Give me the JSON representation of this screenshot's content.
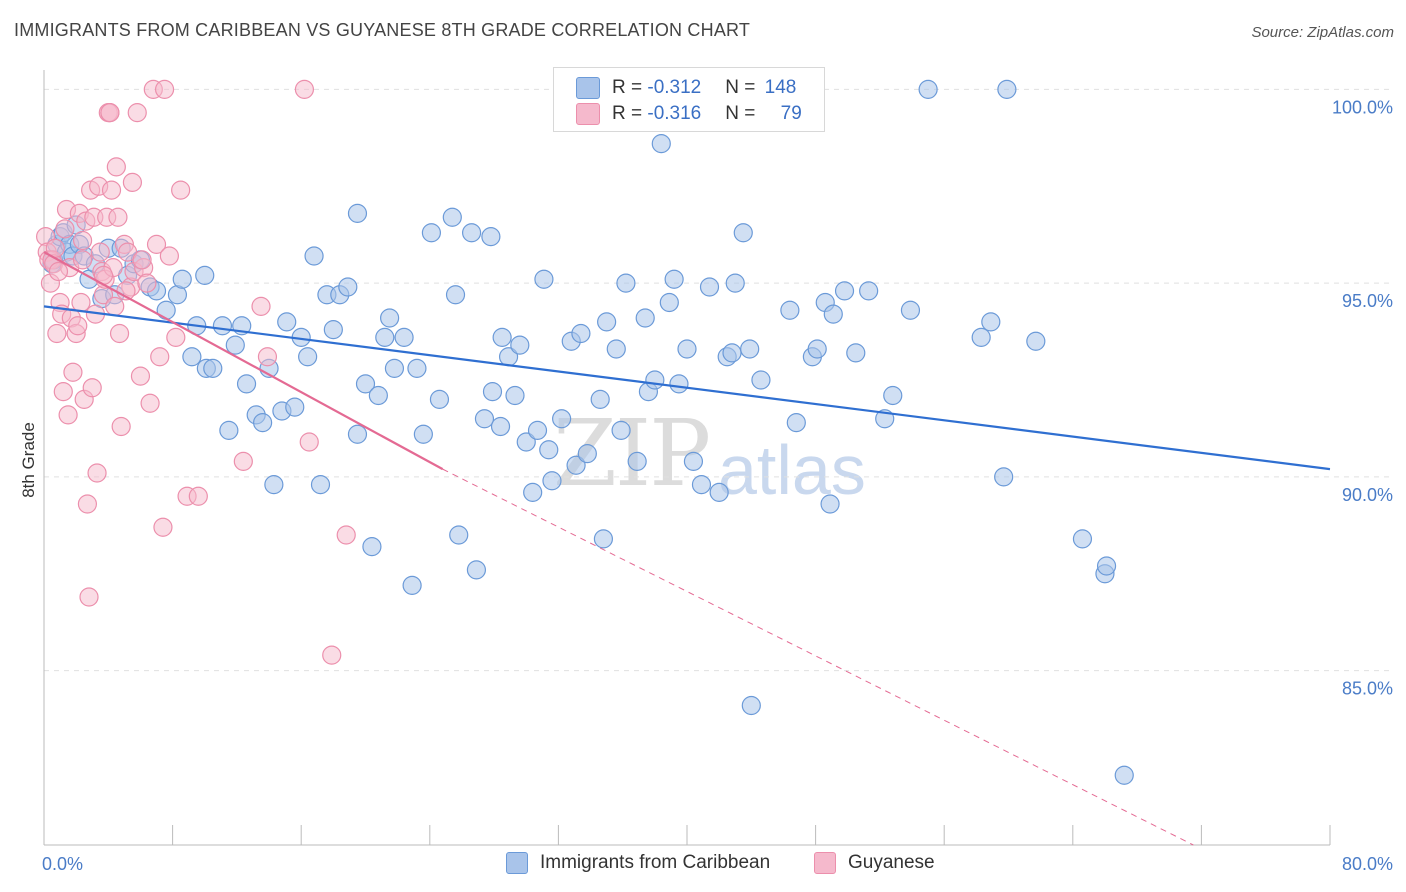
{
  "title": "IMMIGRANTS FROM CARIBBEAN VS GUYANESE 8TH GRADE CORRELATION CHART",
  "source": "Source: ZipAtlas.com",
  "watermark": {
    "zip": "ZIP",
    "atlas": "atlas"
  },
  "legend": {
    "series1": {
      "r_label": "R = ",
      "r_value": "-0.312",
      "n_label": "N = ",
      "n_value": "148"
    },
    "series2": {
      "r_label": "R = ",
      "r_value": "-0.316",
      "n_label": "N = ",
      "n_value": "79"
    }
  },
  "bottom_legend": {
    "series1": "Immigrants from Caribbean",
    "series2": "Guyanese"
  },
  "colors": {
    "blue_fill": "#a9c4ea",
    "blue_stroke": "#6b9ad8",
    "blue_line": "#2f6fd1",
    "pink_fill": "#f5b9cc",
    "pink_stroke": "#ec8fac",
    "pink_line": "#e46a93",
    "grid": "#e0e0e0"
  },
  "chart_data": {
    "type": "scatter",
    "title": "IMMIGRANTS FROM CARIBBEAN VS GUYANESE 8TH GRADE CORRELATION CHART",
    "xlabel": "",
    "ylabel": "8th Grade",
    "xlim": [
      0,
      80
    ],
    "ylim": [
      80.5,
      100.5
    ],
    "x_tick_labels": [
      "0.0%",
      "80.0%"
    ],
    "y_ticks": [
      85,
      90,
      95,
      100
    ],
    "y_tick_labels": [
      "85.0%",
      "90.0%",
      "95.0%",
      "100.0%"
    ],
    "grid": true,
    "legend_position": "top-center",
    "series": [
      {
        "name": "Immigrants from Caribbean",
        "color": "#a9c4ea",
        "trend": {
          "x": [
            0,
            80
          ],
          "y": [
            94.4,
            90.2
          ],
          "style": "solid"
        },
        "points": [
          [
            0.5,
            95.5
          ],
          [
            0.6,
            95.6
          ],
          [
            0.8,
            96
          ],
          [
            1,
            96.2
          ],
          [
            1.2,
            96.3
          ],
          [
            1.4,
            95.8
          ],
          [
            1.6,
            96
          ],
          [
            1.8,
            95.7
          ],
          [
            2,
            96.5
          ],
          [
            2.2,
            96
          ],
          [
            2.5,
            95.7
          ],
          [
            2.8,
            95.1
          ],
          [
            3.2,
            95.5
          ],
          [
            3.6,
            94.6
          ],
          [
            4,
            95.9
          ],
          [
            4.4,
            94.7
          ],
          [
            4.8,
            95.9
          ],
          [
            5.2,
            95.2
          ],
          [
            5.6,
            95.5
          ],
          [
            6,
            95.6
          ],
          [
            6.6,
            94.9
          ],
          [
            7,
            94.8
          ],
          [
            7.6,
            94.3
          ],
          [
            8.3,
            94.7
          ],
          [
            8.6,
            95.1
          ],
          [
            9.2,
            93.1
          ],
          [
            9.5,
            93.9
          ],
          [
            10.1,
            92.8
          ],
          [
            10,
            95.2
          ],
          [
            10.5,
            92.8
          ],
          [
            11.1,
            93.9
          ],
          [
            11.5,
            91.2
          ],
          [
            11.9,
            93.4
          ],
          [
            12.3,
            93.9
          ],
          [
            12.6,
            92.4
          ],
          [
            13.2,
            91.6
          ],
          [
            13.6,
            91.4
          ],
          [
            14,
            92.8
          ],
          [
            14.3,
            89.8
          ],
          [
            14.8,
            91.7
          ],
          [
            15.1,
            94
          ],
          [
            15.6,
            91.8
          ],
          [
            16,
            93.6
          ],
          [
            16.4,
            93.1
          ],
          [
            16.8,
            95.7
          ],
          [
            17.2,
            89.8
          ],
          [
            17.6,
            94.7
          ],
          [
            18,
            93.8
          ],
          [
            18.4,
            94.7
          ],
          [
            18.9,
            94.9
          ],
          [
            19.5,
            91.1
          ],
          [
            19.5,
            96.8
          ],
          [
            20,
            92.4
          ],
          [
            20.4,
            88.2
          ],
          [
            20.8,
            92.1
          ],
          [
            21.2,
            93.6
          ],
          [
            21.5,
            94.1
          ],
          [
            21.8,
            92.8
          ],
          [
            22.4,
            93.6
          ],
          [
            22.9,
            87.2
          ],
          [
            23.2,
            92.8
          ],
          [
            23.6,
            91.1
          ],
          [
            24.1,
            96.3
          ],
          [
            24.6,
            92
          ],
          [
            25.4,
            96.7
          ],
          [
            25.6,
            94.7
          ],
          [
            25.8,
            88.5
          ],
          [
            26.6,
            96.3
          ],
          [
            26.9,
            87.6
          ],
          [
            27.4,
            91.5
          ],
          [
            27.8,
            96.2
          ],
          [
            27.9,
            92.2
          ],
          [
            28.4,
            91.3
          ],
          [
            28.5,
            93.6
          ],
          [
            28.9,
            93.1
          ],
          [
            29.3,
            92.1
          ],
          [
            29.6,
            93.4
          ],
          [
            30,
            90.9
          ],
          [
            30.4,
            89.6
          ],
          [
            30.7,
            91.2
          ],
          [
            31.1,
            95.1
          ],
          [
            31.4,
            90.7
          ],
          [
            31.6,
            89.9
          ],
          [
            32.2,
            91.5
          ],
          [
            32.8,
            93.5
          ],
          [
            33.1,
            90.3
          ],
          [
            33.4,
            93.7
          ],
          [
            33.8,
            90.6
          ],
          [
            34.6,
            92
          ],
          [
            34.8,
            88.4
          ],
          [
            35,
            94
          ],
          [
            35.6,
            93.3
          ],
          [
            35.9,
            91.2
          ],
          [
            36.2,
            95
          ],
          [
            36.9,
            90.4
          ],
          [
            37.4,
            94.1
          ],
          [
            37.6,
            92.2
          ],
          [
            38,
            92.5
          ],
          [
            38.9,
            94.5
          ],
          [
            39.2,
            95.1
          ],
          [
            39.5,
            92.4
          ],
          [
            40,
            93.3
          ],
          [
            40.4,
            90.4
          ],
          [
            40.9,
            89.8
          ],
          [
            41.4,
            94.9
          ],
          [
            42,
            89.6
          ],
          [
            42.5,
            93.1
          ],
          [
            42.8,
            93.2
          ],
          [
            43,
            95
          ],
          [
            43.9,
            93.3
          ],
          [
            44,
            84.1
          ],
          [
            44.6,
            92.5
          ],
          [
            46.4,
            94.3
          ],
          [
            46.8,
            91.4
          ],
          [
            47.8,
            93.1
          ],
          [
            48.1,
            93.3
          ],
          [
            48.6,
            94.5
          ],
          [
            48.9,
            89.3
          ],
          [
            49.1,
            94.2
          ],
          [
            49.8,
            94.8
          ],
          [
            50.5,
            93.2
          ],
          [
            51.3,
            94.8
          ],
          [
            52.3,
            91.5
          ],
          [
            52.8,
            92.1
          ],
          [
            55,
            100
          ],
          [
            58.3,
            93.6
          ],
          [
            58.9,
            94
          ],
          [
            59.7,
            90
          ],
          [
            61.7,
            93.5
          ],
          [
            64.6,
            88.4
          ],
          [
            66,
            87.5
          ],
          [
            66.1,
            87.7
          ],
          [
            67.2,
            82.3
          ],
          [
            59.9,
            100
          ],
          [
            43.5,
            96.3
          ],
          [
            38.4,
            98.6
          ],
          [
            53.9,
            94.3
          ]
        ]
      },
      {
        "name": "Guyanese",
        "color": "#f5b9cc",
        "trend": {
          "x": [
            0,
            24.8
          ],
          "y": [
            95.8,
            90.2
          ],
          "style": "solid",
          "extended_to": [
            71.5,
            80.5
          ],
          "extended_style": "dashed"
        },
        "points": [
          [
            0.1,
            96.2
          ],
          [
            0.2,
            95.8
          ],
          [
            0.3,
            95.6
          ],
          [
            0.4,
            95
          ],
          [
            0.5,
            95.6
          ],
          [
            0.6,
            95.5
          ],
          [
            0.7,
            95.9
          ],
          [
            0.8,
            93.7
          ],
          [
            1,
            94.5
          ],
          [
            1.1,
            94.2
          ],
          [
            1.2,
            92.2
          ],
          [
            1.4,
            96.9
          ],
          [
            1.5,
            91.6
          ],
          [
            1.6,
            95.4
          ],
          [
            1.7,
            94.1
          ],
          [
            1.8,
            92.7
          ],
          [
            2,
            93.7
          ],
          [
            2.1,
            93.9
          ],
          [
            2.2,
            96.8
          ],
          [
            2.3,
            94.5
          ],
          [
            2.4,
            95.6
          ],
          [
            2.5,
            92
          ],
          [
            2.6,
            96.6
          ],
          [
            2.7,
            89.3
          ],
          [
            2.8,
            86.9
          ],
          [
            2.9,
            97.4
          ],
          [
            3,
            92.3
          ],
          [
            3.1,
            96.7
          ],
          [
            3.2,
            94.2
          ],
          [
            3.3,
            90.1
          ],
          [
            3.4,
            97.5
          ],
          [
            3.5,
            95.8
          ],
          [
            3.6,
            95.3
          ],
          [
            3.7,
            94.7
          ],
          [
            3.8,
            95.1
          ],
          [
            3.9,
            96.7
          ],
          [
            4,
            99.4
          ],
          [
            4.1,
            99.4
          ],
          [
            4.2,
            97.4
          ],
          [
            4.3,
            95.4
          ],
          [
            4.4,
            94.4
          ],
          [
            4.5,
            98
          ],
          [
            4.6,
            96.7
          ],
          [
            4.7,
            93.7
          ],
          [
            4.8,
            91.3
          ],
          [
            5,
            96
          ],
          [
            5.2,
            95.8
          ],
          [
            5.4,
            94.9
          ],
          [
            5.6,
            95.3
          ],
          [
            5.8,
            99.4
          ],
          [
            6,
            92.6
          ],
          [
            6.2,
            95.4
          ],
          [
            6.4,
            95
          ],
          [
            6.6,
            91.9
          ],
          [
            6.8,
            100
          ],
          [
            7,
            96
          ],
          [
            7.2,
            93.1
          ],
          [
            7.4,
            88.7
          ],
          [
            7.8,
            95.7
          ],
          [
            8.2,
            93.6
          ],
          [
            8.5,
            97.4
          ],
          [
            8.9,
            89.5
          ],
          [
            9.6,
            89.5
          ],
          [
            12.4,
            90.4
          ],
          [
            13.9,
            93.1
          ],
          [
            13.5,
            94.4
          ],
          [
            16.5,
            90.9
          ],
          [
            17.9,
            85.4
          ],
          [
            18.8,
            88.5
          ],
          [
            16.2,
            100
          ],
          [
            7.5,
            100
          ],
          [
            4.1,
            99.4
          ],
          [
            0.9,
            95.3
          ],
          [
            1.3,
            96.4
          ],
          [
            2.4,
            96.1
          ],
          [
            3.7,
            95.2
          ],
          [
            5.1,
            94.8
          ],
          [
            5.5,
            97.6
          ],
          [
            6.1,
            95.6
          ]
        ]
      }
    ]
  }
}
